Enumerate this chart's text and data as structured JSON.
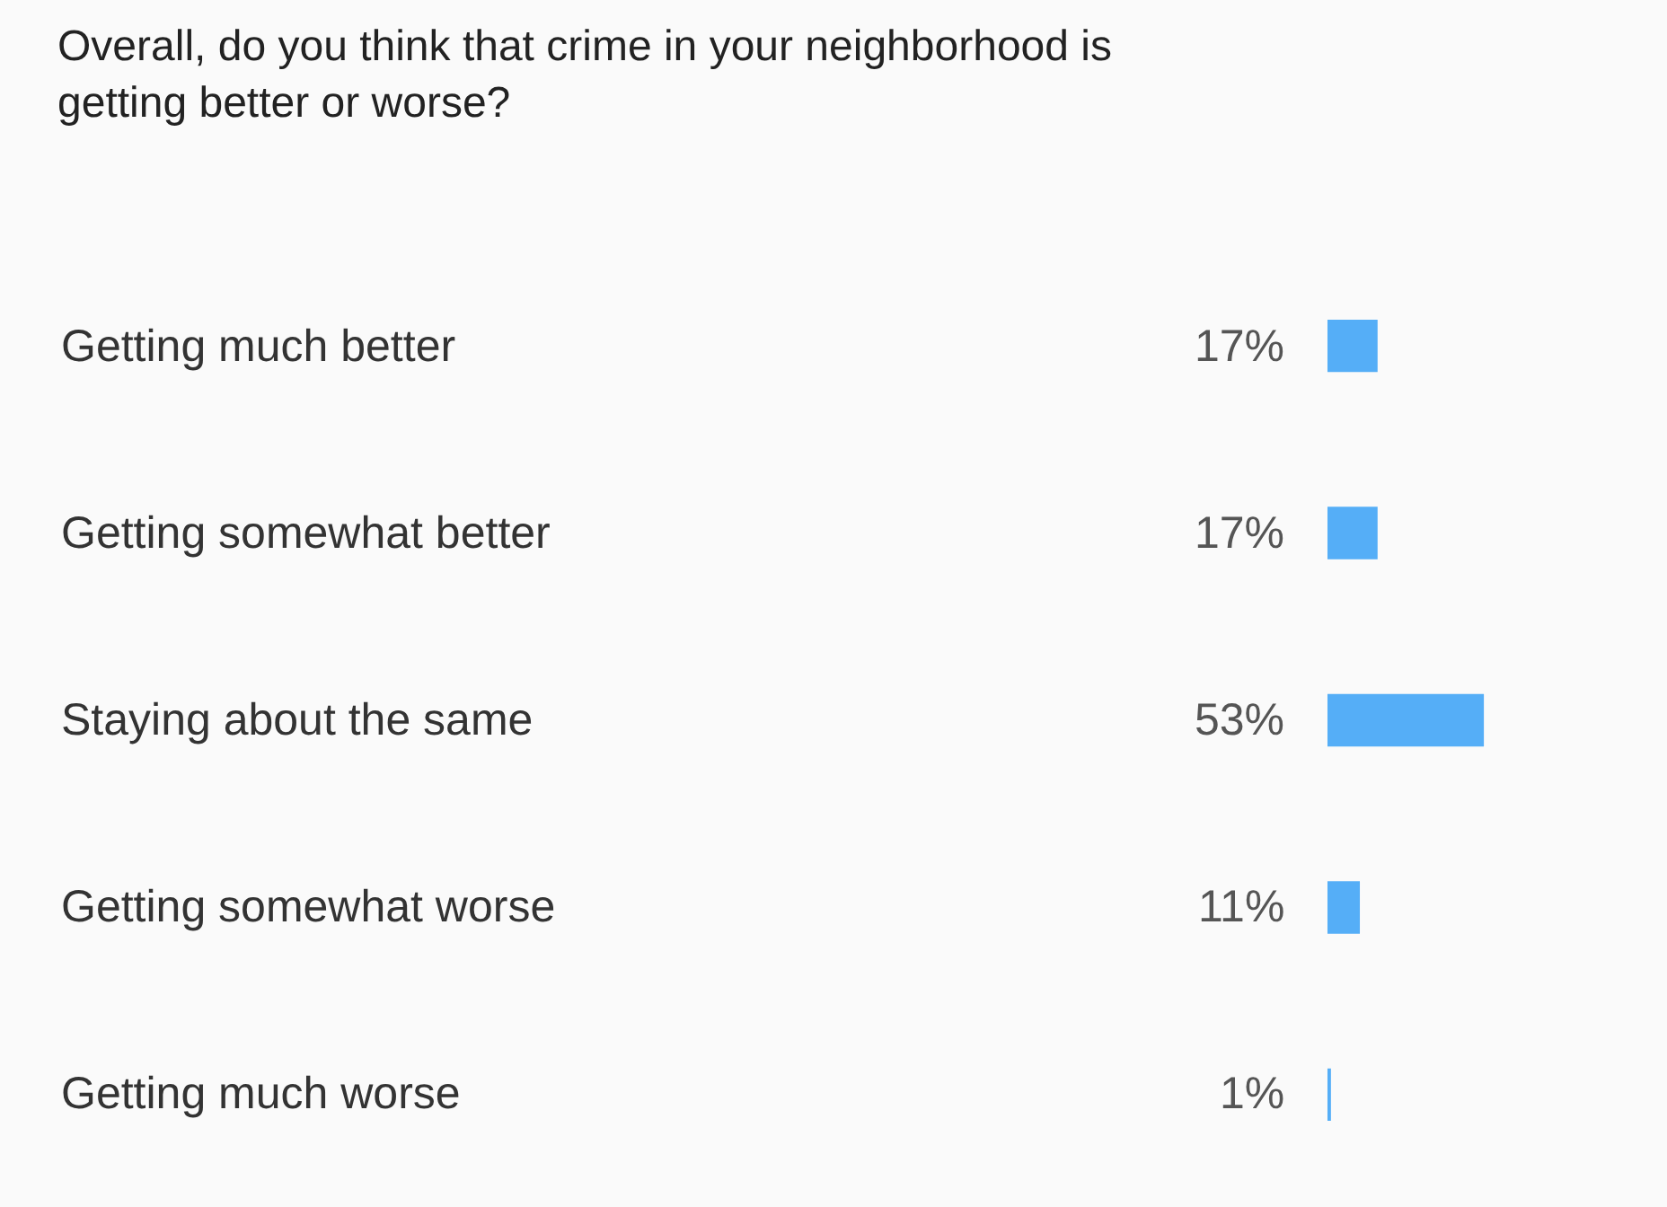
{
  "chart_data": {
    "type": "bar",
    "orientation": "horizontal",
    "title": "Overall, do you think that crime in your neighborhood is getting better or worse?",
    "categories": [
      "Getting much better",
      "Getting somewhat better",
      "Staying about the same",
      "Getting somewhat worse",
      "Getting much worse"
    ],
    "values": [
      17,
      17,
      53,
      11,
      1
    ],
    "value_labels": [
      "17%",
      "17%",
      "53%",
      "11%",
      "1%"
    ],
    "color": "#55aef7",
    "grid": false,
    "legend": false
  }
}
